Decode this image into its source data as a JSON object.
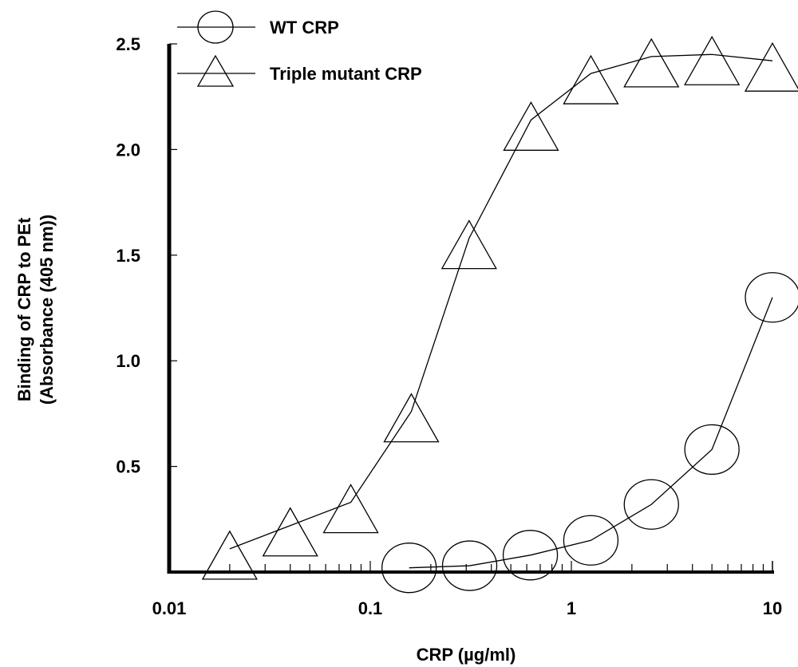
{
  "chart_data": {
    "type": "scatter",
    "x_scale": "log",
    "xlim": [
      0.01,
      10
    ],
    "ylim": [
      0,
      2.5
    ],
    "xlabel": "CRP (µg/ml)",
    "ylabel_lines": [
      "Binding of CRP to PEt",
      "(Absorbance (405 nm))"
    ],
    "x_ticks": [
      {
        "value": 0.01,
        "label": "0.01"
      },
      {
        "value": 0.1,
        "label": "0.1"
      },
      {
        "value": 1,
        "label": "1"
      },
      {
        "value": 10,
        "label": "10"
      }
    ],
    "y_ticks": [
      {
        "value": 0.5,
        "label": "0.5"
      },
      {
        "value": 1.0,
        "label": "1.0"
      },
      {
        "value": 1.5,
        "label": "1.5"
      },
      {
        "value": 2.0,
        "label": "2.0"
      },
      {
        "value": 2.5,
        "label": "2.5"
      }
    ],
    "series": [
      {
        "name": "WT CRP",
        "marker": "circle",
        "x": [
          0.156,
          0.312,
          0.625,
          1.25,
          2.5,
          5,
          10
        ],
        "y": [
          0.02,
          0.03,
          0.08,
          0.15,
          0.32,
          0.58,
          1.3
        ]
      },
      {
        "name": "Triple mutant CRP",
        "marker": "triangle",
        "x": [
          0.02,
          0.04,
          0.08,
          0.16,
          0.31,
          0.63,
          1.25,
          2.5,
          5,
          10
        ],
        "y": [
          0.11,
          0.22,
          0.33,
          0.76,
          1.58,
          2.14,
          2.36,
          2.44,
          2.45,
          2.42
        ]
      }
    ],
    "legend": {
      "position": "top-left"
    },
    "grid": false,
    "colors": {
      "line": "#000000",
      "background": "#ffffff"
    }
  }
}
